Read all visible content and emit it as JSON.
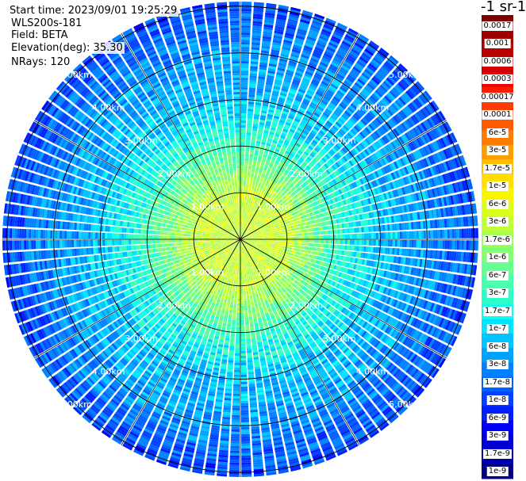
{
  "info": {
    "start_time": "Start time: 2023/09/01 19:25:29",
    "device": "WLS200s-181",
    "field": "Field: BETA",
    "elevation": "Elevation(deg): 35.30",
    "nrays": "NRays: 120"
  },
  "colorbar": {
    "unit_title": "-1 sr-1",
    "colors": [
      "#800000",
      "#9d0000",
      "#b80000",
      "#d40000",
      "#ee0000",
      "#ff1a00",
      "#ff3b00",
      "#ff5c00",
      "#ff7c00",
      "#ff9c00",
      "#ffbd00",
      "#ffde00",
      "#f8f500",
      "#dbff1c",
      "#beff39",
      "#a1ff56",
      "#84ff73",
      "#67ff90",
      "#4affad",
      "#2dffca",
      "#10ffe7",
      "#00e4ff",
      "#00c3ff",
      "#00a2ff",
      "#0081ff",
      "#0060ff",
      "#0040ff",
      "#001fff",
      "#0000f5",
      "#0000d0",
      "#0000ab",
      "#000086"
    ],
    "labels": [
      "0.0017",
      "0.001",
      "0.0006",
      "0.0003",
      "0.00017",
      "0.0001",
      "6e-5",
      "3e-5",
      "1.7e-5",
      "1e-5",
      "6e-6",
      "3e-6",
      "1.7e-6",
      "1e-6",
      "6e-7",
      "3e-7",
      "1.7e-7",
      "1e-7",
      "6e-8",
      "3e-8",
      "1.7e-8",
      "1e-8",
      "6e-9",
      "3e-9",
      "1.7e-9",
      "1e-9"
    ]
  },
  "chart_data": {
    "type": "heatmap",
    "subtype": "polar-ppi",
    "title": "",
    "field": "BETA",
    "elevation_deg": 35.3,
    "n_rays": 120,
    "scale": "log",
    "range_rings_km": [
      1,
      2,
      3,
      4,
      5
    ],
    "ring_labels": [
      "1.00km",
      "2.00km",
      "3.00km",
      "4.00km",
      "5.00km"
    ],
    "max_range_km": 5.1,
    "spokes_deg": [
      0,
      30,
      60,
      90,
      120,
      150,
      180,
      210,
      240,
      270,
      300,
      330
    ],
    "grid": true,
    "value_profile": {
      "near_range_km": [
        0,
        1,
        2,
        3,
        4,
        5
      ],
      "typical_beta": [
        3e-06,
        3e-06,
        3e-07,
        6e-08,
        3e-08,
        1e-08
      ]
    }
  }
}
